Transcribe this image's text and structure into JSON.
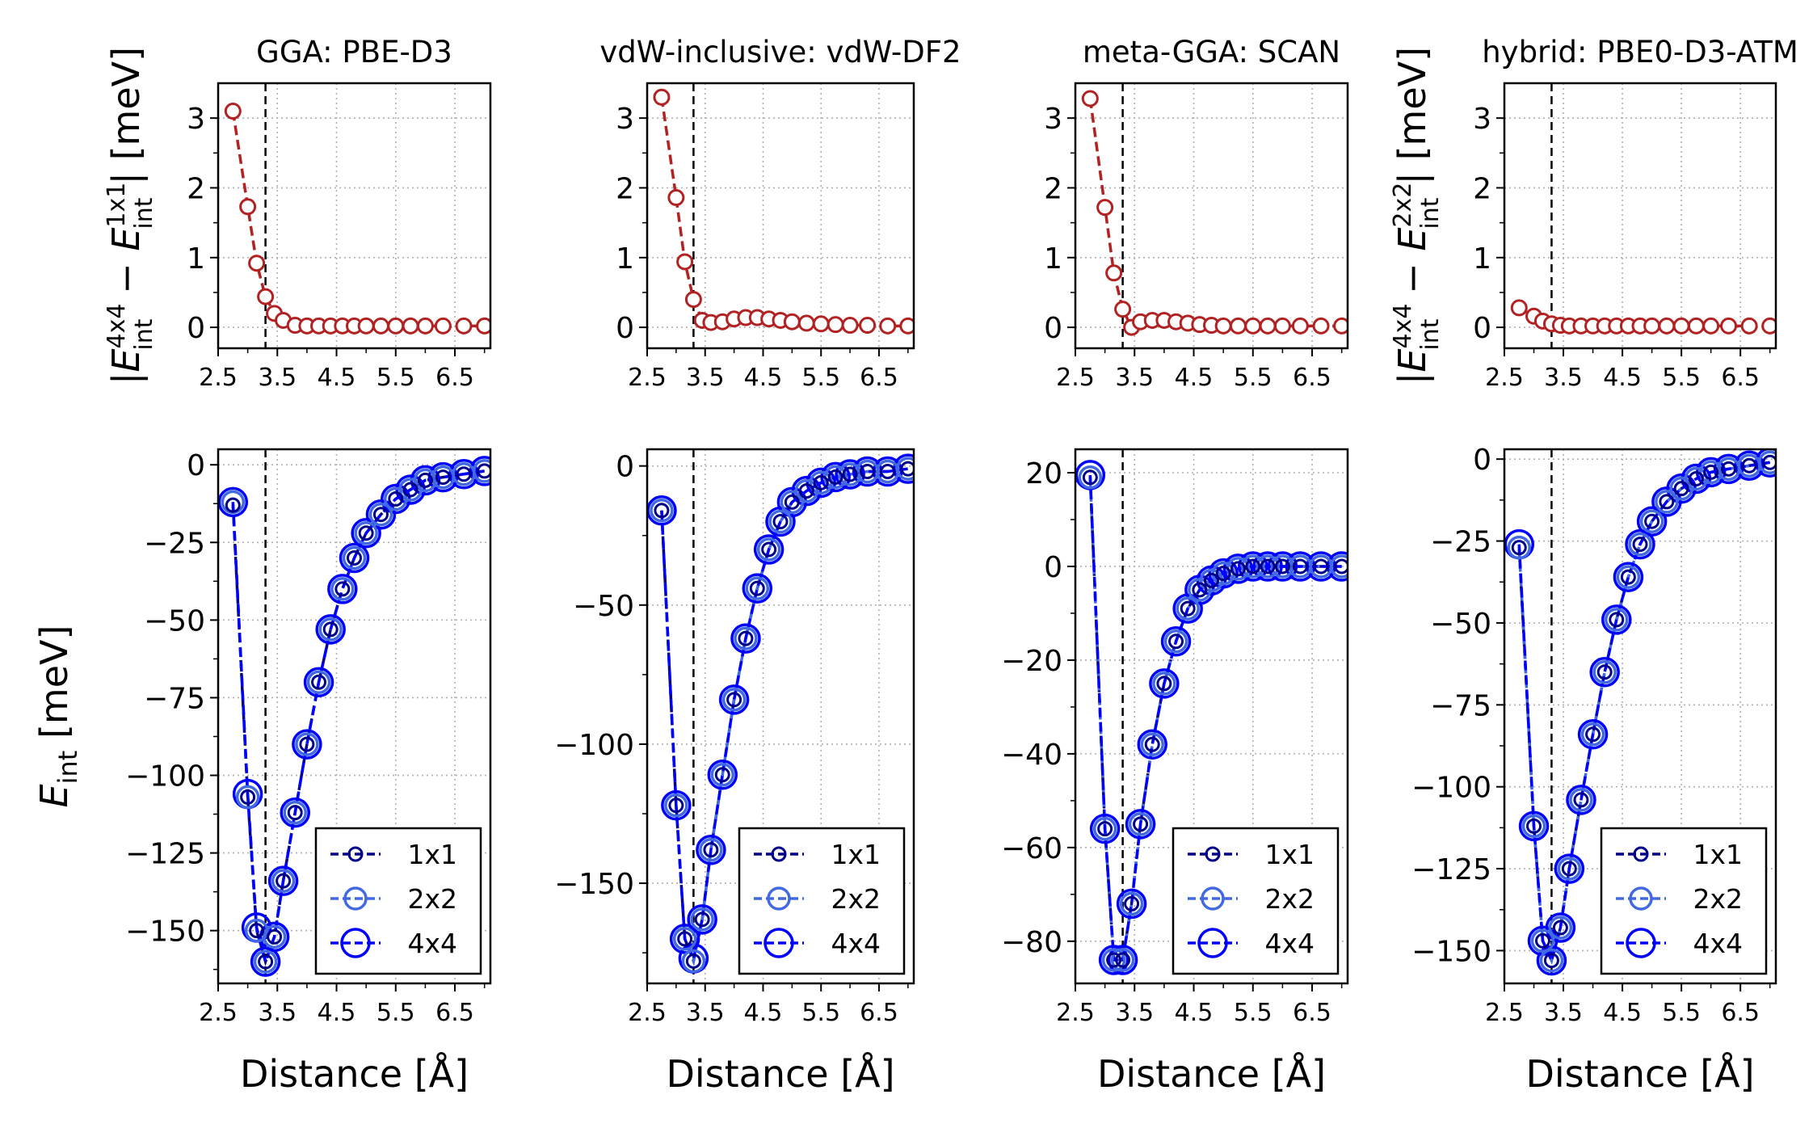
{
  "figure": {
    "panels": [
      {
        "title": "GGA: PBE-D3"
      },
      {
        "title": "vdW-inclusive: vdW-DF2"
      },
      {
        "title": "meta-GGA: SCAN"
      },
      {
        "title": "hybrid: PBE0-D3-ATM"
      }
    ],
    "colors": {
      "diff_series": "#b22222",
      "s1x1": "#00008b",
      "s2x2": "#4169e1",
      "s4x4": "#0000ff",
      "grid": "#b0b0b0",
      "vline": "#000000"
    },
    "icons": {
      "legend_markers": [
        "open-circle-small",
        "open-circle-medium",
        "open-circle-large"
      ]
    }
  },
  "chart_data": [
    {
      "type": "line",
      "panel": "GGA: PBE-D3",
      "row": "top",
      "title": "GGA: PBE-D3",
      "xlabel": "",
      "ylabel": "|E_int^4x4 - E_int^1x1| [meV]",
      "ylabel_parts": {
        "bar": "|",
        "E": "E",
        "sup1": "4x4",
        "sub1": "int",
        "minus": "−",
        "sup2": "1x1",
        "sub2": "int",
        "unit": "| [meV]"
      },
      "xlim": [
        2.5,
        7.1
      ],
      "ylim": [
        -0.3,
        3.5
      ],
      "xticks": [
        "2.5",
        "3.5",
        "4.5",
        "5.5",
        "6.5"
      ],
      "yticks": [
        "0",
        "1",
        "2",
        "3"
      ],
      "vline": 3.3,
      "grid": true,
      "series": [
        {
          "x": [
            2.75,
            3.0,
            3.15,
            3.3,
            3.45,
            3.6,
            3.8,
            4.0,
            4.2,
            4.4,
            4.6,
            4.8,
            5.0,
            5.25,
            5.5,
            5.75,
            6.0,
            6.3,
            6.65,
            7.0
          ],
          "values": [
            3.1,
            1.73,
            0.92,
            0.44,
            0.2,
            0.1,
            0.03,
            0.02,
            0.02,
            0.02,
            0.02,
            0.02,
            0.02,
            0.02,
            0.02,
            0.02,
            0.02,
            0.02,
            0.02,
            0.02
          ]
        }
      ]
    },
    {
      "type": "line",
      "panel": "vdW-inclusive: vdW-DF2",
      "row": "top",
      "title": "vdW-inclusive: vdW-DF2",
      "xlabel": "",
      "ylabel": "",
      "xlim": [
        2.5,
        7.1
      ],
      "ylim": [
        -0.3,
        3.5
      ],
      "xticks": [
        "2.5",
        "3.5",
        "4.5",
        "5.5",
        "6.5"
      ],
      "yticks": [
        "0",
        "1",
        "2",
        "3"
      ],
      "vline": 3.3,
      "grid": true,
      "series": [
        {
          "x": [
            2.75,
            3.0,
            3.15,
            3.3,
            3.45,
            3.6,
            3.8,
            4.0,
            4.2,
            4.4,
            4.6,
            4.8,
            5.0,
            5.25,
            5.5,
            5.75,
            6.0,
            6.3,
            6.65,
            7.0
          ],
          "values": [
            3.3,
            1.86,
            0.94,
            0.4,
            0.1,
            0.07,
            0.08,
            0.12,
            0.14,
            0.14,
            0.12,
            0.1,
            0.08,
            0.06,
            0.05,
            0.04,
            0.03,
            0.03,
            0.02,
            0.02
          ]
        }
      ]
    },
    {
      "type": "line",
      "panel": "meta-GGA: SCAN",
      "row": "top",
      "title": "meta-GGA: SCAN",
      "xlabel": "",
      "ylabel": "",
      "xlim": [
        2.5,
        7.1
      ],
      "ylim": [
        -0.3,
        3.5
      ],
      "xticks": [
        "2.5",
        "3.5",
        "4.5",
        "5.5",
        "6.5"
      ],
      "yticks": [
        "0",
        "1",
        "2",
        "3"
      ],
      "vline": 3.3,
      "grid": true,
      "series": [
        {
          "x": [
            2.75,
            3.0,
            3.15,
            3.3,
            3.45,
            3.6,
            3.8,
            4.0,
            4.2,
            4.4,
            4.6,
            4.8,
            5.0,
            5.25,
            5.5,
            5.75,
            6.0,
            6.3,
            6.65,
            7.0
          ],
          "values": [
            3.28,
            1.72,
            0.78,
            0.26,
            0.0,
            0.08,
            0.1,
            0.1,
            0.08,
            0.06,
            0.04,
            0.03,
            0.02,
            0.02,
            0.02,
            0.02,
            0.02,
            0.02,
            0.02,
            0.02
          ]
        }
      ]
    },
    {
      "type": "line",
      "panel": "hybrid: PBE0-D3-ATM",
      "row": "top",
      "title": "hybrid: PBE0-D3-ATM",
      "xlabel": "",
      "ylabel": "|E_int^4x4 - E_int^2x2| [meV]",
      "ylabel_parts": {
        "bar": "|",
        "E": "E",
        "sup1": "4x4",
        "sub1": "int",
        "minus": "−",
        "sup2": "2x2",
        "sub2": "int",
        "unit": "| [meV]"
      },
      "xlim": [
        2.5,
        7.1
      ],
      "ylim": [
        -0.3,
        3.5
      ],
      "xticks": [
        "2.5",
        "3.5",
        "4.5",
        "5.5",
        "6.5"
      ],
      "yticks": [
        "0",
        "1",
        "2",
        "3"
      ],
      "vline": 3.3,
      "grid": true,
      "series": [
        {
          "x": [
            2.75,
            3.0,
            3.15,
            3.3,
            3.45,
            3.6,
            3.8,
            4.0,
            4.2,
            4.4,
            4.6,
            4.8,
            5.0,
            5.25,
            5.5,
            5.75,
            6.0,
            6.3,
            6.65,
            7.0
          ],
          "values": [
            0.28,
            0.16,
            0.09,
            0.05,
            0.03,
            0.02,
            0.02,
            0.02,
            0.02,
            0.02,
            0.02,
            0.02,
            0.02,
            0.02,
            0.02,
            0.02,
            0.02,
            0.02,
            0.02,
            0.02
          ]
        }
      ]
    },
    {
      "type": "line",
      "panel": "GGA: PBE-D3",
      "row": "bottom",
      "title": "",
      "xlabel": "Distance [Å]",
      "ylabel": "E_int [meV]",
      "ylabel_parts": {
        "E": "E",
        "sub": "int",
        "unit": " [meV]"
      },
      "xlim": [
        2.5,
        7.1
      ],
      "ylim": [
        -167,
        5
      ],
      "xticks": [
        "2.5",
        "3.5",
        "4.5",
        "5.5",
        "6.5"
      ],
      "yticks": [
        "0",
        "−25",
        "−50",
        "−75",
        "−100",
        "−125",
        "−150"
      ],
      "ytick_values": [
        0,
        -25,
        -50,
        -75,
        -100,
        -125,
        -150
      ],
      "vline": 3.3,
      "grid": true,
      "legend": "lower-right",
      "x": [
        2.75,
        3.0,
        3.15,
        3.3,
        3.45,
        3.6,
        3.8,
        4.0,
        4.2,
        4.4,
        4.6,
        4.8,
        5.0,
        5.25,
        5.5,
        5.75,
        6.0,
        6.3,
        6.65,
        7.0
      ],
      "series": [
        {
          "name": "1x1",
          "values": [
            -13,
            -107,
            -150,
            -160,
            -152,
            -134,
            -112,
            -90,
            -70,
            -53,
            -40,
            -30,
            -22,
            -16,
            -11,
            -8,
            -5,
            -4,
            -3,
            -2
          ]
        },
        {
          "name": "2x2",
          "values": [
            -12,
            -107,
            -150,
            -160,
            -152,
            -134,
            -112,
            -90,
            -70,
            -53,
            -40,
            -30,
            -22,
            -16,
            -11,
            -8,
            -5,
            -4,
            -3,
            -2
          ]
        },
        {
          "name": "4x4",
          "values": [
            -12,
            -106,
            -149,
            -160,
            -152,
            -134,
            -112,
            -90,
            -70,
            -53,
            -40,
            -30,
            -22,
            -16,
            -11,
            -8,
            -5,
            -4,
            -3,
            -2
          ]
        }
      ]
    },
    {
      "type": "line",
      "panel": "vdW-inclusive: vdW-DF2",
      "row": "bottom",
      "title": "",
      "xlabel": "Distance [Å]",
      "ylabel": "",
      "xlim": [
        2.5,
        7.1
      ],
      "ylim": [
        -186,
        6
      ],
      "xticks": [
        "2.5",
        "3.5",
        "4.5",
        "5.5",
        "6.5"
      ],
      "yticks": [
        "0",
        "−50",
        "−100",
        "−150"
      ],
      "ytick_values": [
        0,
        -50,
        -100,
        -150
      ],
      "vline": 3.3,
      "grid": true,
      "legend": "lower-right",
      "x": [
        2.75,
        3.0,
        3.15,
        3.3,
        3.45,
        3.6,
        3.8,
        4.0,
        4.2,
        4.4,
        4.6,
        4.8,
        5.0,
        5.25,
        5.5,
        5.75,
        6.0,
        6.3,
        6.65,
        7.0
      ],
      "series": [
        {
          "name": "1x1",
          "values": [
            -16,
            -122,
            -170,
            -178,
            -163,
            -138,
            -111,
            -84,
            -62,
            -44,
            -30,
            -20,
            -13,
            -9,
            -6,
            -4,
            -3,
            -2,
            -2,
            -1
          ]
        },
        {
          "name": "2x2",
          "values": [
            -16,
            -122,
            -170,
            -178,
            -163,
            -138,
            -111,
            -84,
            -62,
            -44,
            -30,
            -20,
            -13,
            -9,
            -6,
            -4,
            -3,
            -2,
            -2,
            -1
          ]
        },
        {
          "name": "4x4",
          "values": [
            -16,
            -122,
            -170,
            -177,
            -163,
            -138,
            -111,
            -84,
            -62,
            -44,
            -30,
            -20,
            -13,
            -9,
            -6,
            -4,
            -3,
            -2,
            -2,
            -1
          ]
        }
      ]
    },
    {
      "type": "line",
      "panel": "meta-GGA: SCAN",
      "row": "bottom",
      "title": "",
      "xlabel": "Distance [Å]",
      "ylabel": "",
      "xlim": [
        2.5,
        7.1
      ],
      "ylim": [
        -89,
        25
      ],
      "xticks": [
        "2.5",
        "3.5",
        "4.5",
        "5.5",
        "6.5"
      ],
      "yticks": [
        "20",
        "0",
        "−20",
        "−40",
        "−60",
        "−80"
      ],
      "ytick_values": [
        20,
        0,
        -20,
        -40,
        -60,
        -80
      ],
      "vline": 3.3,
      "grid": true,
      "legend": "lower-right",
      "x": [
        2.75,
        3.0,
        3.15,
        3.3,
        3.45,
        3.6,
        3.8,
        4.0,
        4.2,
        4.4,
        4.6,
        4.8,
        5.0,
        5.25,
        5.5,
        5.75,
        6.0,
        6.3,
        6.65,
        7.0
      ],
      "series": [
        {
          "name": "1x1",
          "values": [
            19,
            -56,
            -84,
            -84,
            -72,
            -55,
            -38,
            -25,
            -16,
            -9,
            -5,
            -3,
            -1.5,
            -0.5,
            0,
            0,
            0,
            0,
            0,
            0
          ]
        },
        {
          "name": "2x2",
          "values": [
            19,
            -56,
            -84,
            -84,
            -72,
            -55,
            -38,
            -25,
            -16,
            -9,
            -5,
            -3,
            -1.5,
            -0.5,
            0,
            0,
            0,
            0,
            0,
            0
          ]
        },
        {
          "name": "4x4",
          "values": [
            19.5,
            -56,
            -84,
            -84,
            -72,
            -55,
            -38,
            -25,
            -16,
            -9,
            -5,
            -3,
            -1.5,
            -0.5,
            0,
            0,
            0,
            0,
            0,
            0
          ]
        }
      ]
    },
    {
      "type": "line",
      "panel": "hybrid: PBE0-D3-ATM",
      "row": "bottom",
      "title": "",
      "xlabel": "Distance [Å]",
      "ylabel": "",
      "xlim": [
        2.5,
        7.1
      ],
      "ylim": [
        -160,
        3
      ],
      "xticks": [
        "2.5",
        "3.5",
        "4.5",
        "5.5",
        "6.5"
      ],
      "yticks": [
        "0",
        "−25",
        "−50",
        "−75",
        "−100",
        "−125",
        "−150"
      ],
      "ytick_values": [
        0,
        -25,
        -50,
        -75,
        -100,
        -125,
        -150
      ],
      "vline": 3.3,
      "grid": true,
      "legend": "lower-right",
      "x": [
        2.75,
        3.0,
        3.15,
        3.3,
        3.45,
        3.6,
        3.8,
        4.0,
        4.2,
        4.4,
        4.6,
        4.8,
        5.0,
        5.25,
        5.5,
        5.75,
        6.0,
        6.3,
        6.65,
        7.0
      ],
      "series": [
        {
          "name": "1x1",
          "values": [
            -27,
            -112,
            -147,
            -153,
            -143,
            -125,
            -104,
            -84,
            -65,
            -49,
            -36,
            -26,
            -19,
            -13,
            -9,
            -6,
            -4,
            -3,
            -2,
            -1
          ]
        },
        {
          "name": "2x2",
          "values": [
            -27,
            -112,
            -147,
            -153,
            -143,
            -125,
            -104,
            -84,
            -65,
            -49,
            -36,
            -26,
            -19,
            -13,
            -9,
            -6,
            -4,
            -3,
            -2,
            -1
          ]
        },
        {
          "name": "4x4",
          "values": [
            -26,
            -112,
            -147,
            -153,
            -143,
            -125,
            -104,
            -84,
            -65,
            -49,
            -36,
            -26,
            -19,
            -13,
            -9,
            -6,
            -4,
            -3,
            -2,
            -1
          ]
        }
      ]
    }
  ]
}
